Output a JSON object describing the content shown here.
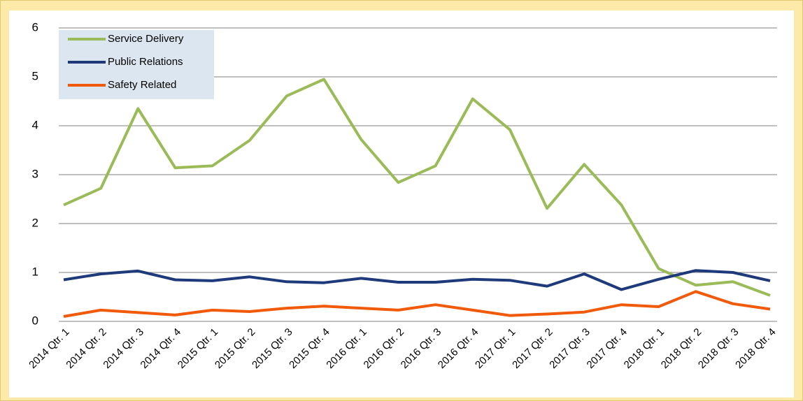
{
  "chart_data": {
    "type": "line",
    "categories": [
      "2014 Qtr. 1",
      "2014 Qtr. 2",
      "2014 Qtr. 3",
      "2014 Qtr. 4",
      "2015 Qtr. 1",
      "2015 Qtr. 2",
      "2015 Qtr. 3",
      "2015 Qtr. 4",
      "2016 Qtr. 1",
      "2016 Qtr. 2",
      "2016 Qtr. 3",
      "2016 Qtr. 4",
      "2017 Qtr. 1",
      "2017 Qtr. 2",
      "2017 Qtr. 3",
      "2017 Qtr. 4",
      "2018 Qtr. 1",
      "2018 Qtr. 2",
      "2018 Qtr. 3",
      "2018 Qtr. 4"
    ],
    "series": [
      {
        "name": "Service Delivery",
        "color": "#9bbb59",
        "values": [
          2.38,
          2.72,
          4.35,
          3.14,
          3.18,
          3.7,
          4.61,
          4.95,
          3.72,
          2.84,
          3.18,
          4.55,
          3.92,
          2.31,
          3.21,
          2.38,
          1.08,
          0.74,
          0.81,
          0.53
        ]
      },
      {
        "name": "Public Relations",
        "color": "#1f3a7a",
        "values": [
          0.85,
          0.97,
          1.03,
          0.85,
          0.83,
          0.91,
          0.81,
          0.79,
          0.88,
          0.8,
          0.8,
          0.86,
          0.84,
          0.72,
          0.97,
          0.65,
          0.86,
          1.04,
          1.0,
          0.83
        ]
      },
      {
        "name": "Safety Related",
        "color": "#f05a0a",
        "values": [
          0.1,
          0.23,
          0.18,
          0.13,
          0.23,
          0.2,
          0.27,
          0.31,
          0.27,
          0.23,
          0.34,
          0.23,
          0.12,
          0.15,
          0.19,
          0.34,
          0.3,
          0.61,
          0.36,
          0.25
        ]
      }
    ],
    "ylim": [
      0,
      6
    ],
    "yticks": [
      0,
      1,
      2,
      3,
      4,
      5,
      6
    ],
    "grid": true,
    "legend": "upper left"
  }
}
